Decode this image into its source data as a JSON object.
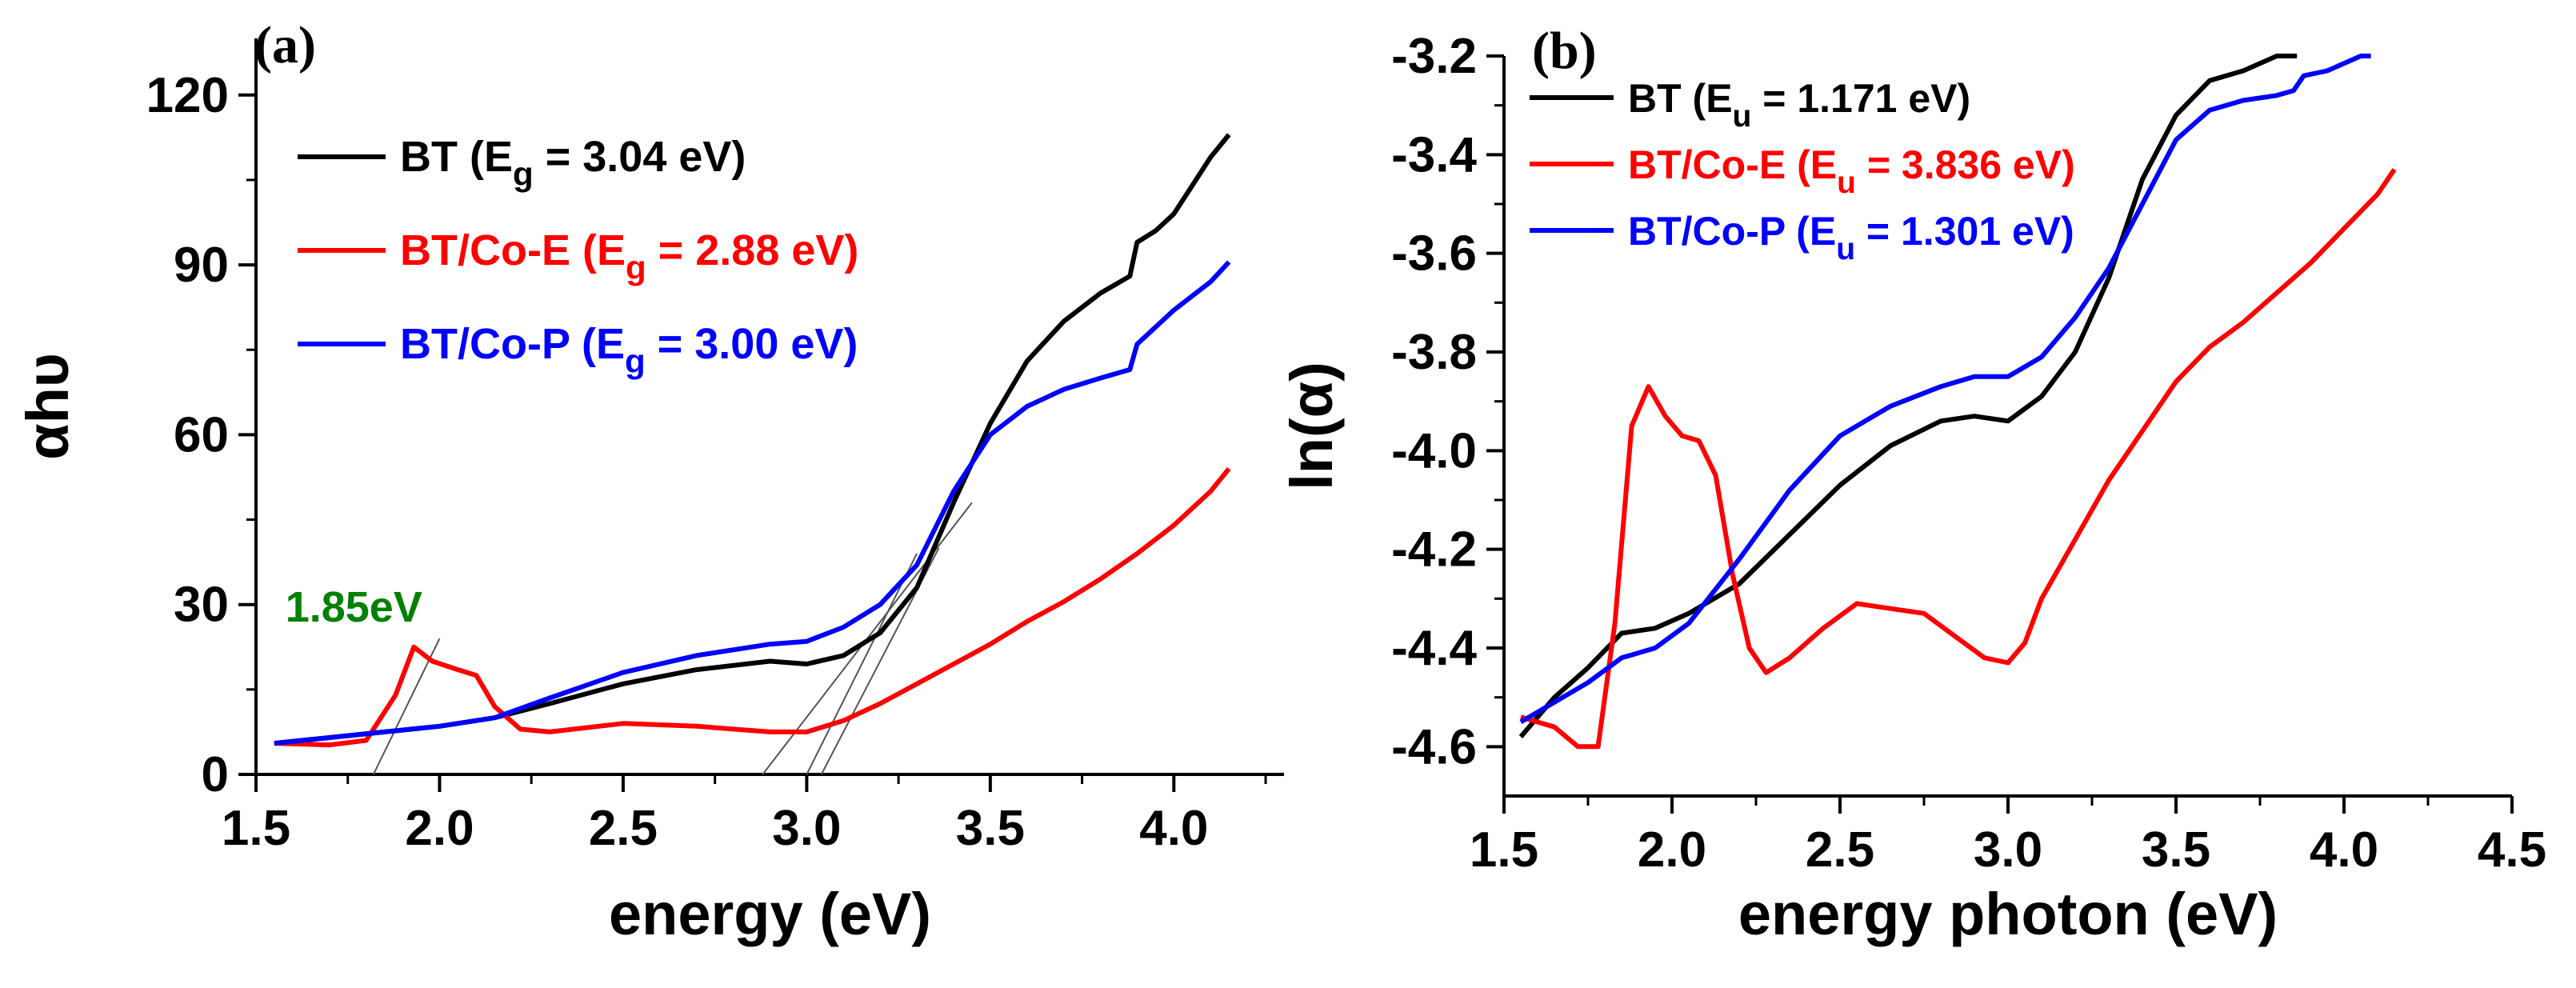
{
  "chart_data": [
    {
      "type": "line",
      "panel_label": "(a)",
      "xlabel": "energy (eV)",
      "ylabel": "αhυ",
      "xlim": [
        1.5,
        4.3
      ],
      "ylim": [
        0,
        130
      ],
      "xticks": [
        1.5,
        2.0,
        2.5,
        3.0,
        3.5,
        4.0
      ],
      "xtick_labels": [
        "1.5",
        "2.0",
        "2.5",
        "3.0",
        "3.5",
        "4.0"
      ],
      "yticks": [
        0,
        30,
        60,
        90,
        120
      ],
      "ytick_labels": [
        "0",
        "30",
        "60",
        "90",
        "120"
      ],
      "annotation": {
        "text": "1.85eV",
        "x": 1.58,
        "y": 27,
        "color": "#008000"
      },
      "legend": [
        {
          "name": "BT",
          "prefix": "BT (E",
          "sub": "g",
          "suffix": " = 3.04 eV)",
          "color": "#000000"
        },
        {
          "name": "BT/Co-E",
          "prefix": "BT/Co-E  (E",
          "sub": "g",
          "suffix": " = 2.88 eV)",
          "color": "#ff0000"
        },
        {
          "name": "BT/Co-P",
          "prefix": "BT/Co-P  (E",
          "sub": "g",
          "suffix": " = 3.00 eV)",
          "color": "#0000ff"
        }
      ],
      "series": [
        {
          "name": "BT",
          "color": "#000000",
          "x": [
            1.55,
            1.7,
            1.85,
            2.0,
            2.15,
            2.3,
            2.5,
            2.7,
            2.9,
            3.0,
            3.1,
            3.2,
            3.3,
            3.4,
            3.5,
            3.6,
            3.7,
            3.8,
            3.88,
            3.9,
            3.95,
            4.0,
            4.05,
            4.1,
            4.15
          ],
          "y": [
            5.5,
            6.5,
            7.5,
            8.5,
            10,
            12.5,
            16,
            18.5,
            20,
            19.5,
            21,
            25,
            33,
            48,
            62,
            73,
            80,
            85,
            88,
            94,
            96,
            99,
            104,
            109,
            113
          ]
        },
        {
          "name": "BT/Co-E",
          "color": "#ff0000",
          "x": [
            1.55,
            1.7,
            1.8,
            1.88,
            1.93,
            1.98,
            2.05,
            2.1,
            2.15,
            2.22,
            2.3,
            2.5,
            2.7,
            2.9,
            3.0,
            3.1,
            3.2,
            3.3,
            3.4,
            3.5,
            3.6,
            3.7,
            3.8,
            3.9,
            4.0,
            4.1,
            4.15
          ],
          "y": [
            5.5,
            5.2,
            6,
            14,
            22.5,
            20,
            18.5,
            17.5,
            12,
            8,
            7.5,
            9,
            8.5,
            7.5,
            7.5,
            9.5,
            12.5,
            16,
            19.5,
            23,
            27,
            30.5,
            34.5,
            39,
            44,
            50,
            54
          ]
        },
        {
          "name": "BT/Co-P",
          "color": "#0000ff",
          "x": [
            1.55,
            1.7,
            1.85,
            2.0,
            2.15,
            2.3,
            2.5,
            2.7,
            2.9,
            3.0,
            3.1,
            3.2,
            3.3,
            3.4,
            3.5,
            3.56,
            3.6,
            3.7,
            3.8,
            3.88,
            3.9,
            4.0,
            4.1,
            4.15
          ],
          "y": [
            5.5,
            6.5,
            7.5,
            8.5,
            10,
            13.5,
            18,
            21,
            23,
            23.5,
            26,
            30,
            37,
            50,
            60,
            63,
            65,
            68,
            70,
            71.5,
            76,
            82,
            87,
            90.5
          ]
        }
      ],
      "tangent_lines": [
        {
          "x": [
            1.82,
            2.0
          ],
          "y": [
            0,
            24
          ]
        },
        {
          "x": [
            2.88,
            3.45
          ],
          "y": [
            0,
            48
          ]
        },
        {
          "x": [
            3.0,
            3.3
          ],
          "y": [
            0,
            39
          ]
        },
        {
          "x": [
            3.04,
            3.36
          ],
          "y": [
            0,
            40
          ]
        }
      ]
    },
    {
      "type": "line",
      "panel_label": "(b)",
      "xlabel": "energy photon (eV)",
      "ylabel": "ln(α)",
      "xlim": [
        1.5,
        4.5
      ],
      "ylim": [
        -4.7,
        -3.2
      ],
      "xticks": [
        1.5,
        2.0,
        2.5,
        3.0,
        3.5,
        4.0,
        4.5
      ],
      "xtick_labels": [
        "1.5",
        "2.0",
        "2.5",
        "3.0",
        "3.5",
        "4.0",
        "4.5"
      ],
      "yticks": [
        -4.6,
        -4.4,
        -4.2,
        -4.0,
        -3.8,
        -3.6,
        -3.4,
        -3.2
      ],
      "ytick_labels": [
        "-4.6",
        "-4.4",
        "-4.2",
        "-4.0",
        "-3.8",
        "-3.6",
        "-3.4",
        "-3.2"
      ],
      "legend": [
        {
          "name": "BT",
          "prefix": "BT (E",
          "sub": "u",
          "suffix": " = 1.171 eV)",
          "color": "#000000"
        },
        {
          "name": "BT/Co-E",
          "prefix": "BT/Co-E (E",
          "sub": "u",
          "suffix": " = 3.836 eV)",
          "color": "#ff0000"
        },
        {
          "name": "BT/Co-P",
          "prefix": "BT/Co-P (E",
          "sub": "u",
          "suffix": " = 1.301 eV)",
          "color": "#0000ff"
        }
      ],
      "series": [
        {
          "name": "BT",
          "color": "#000000",
          "x": [
            1.55,
            1.65,
            1.75,
            1.85,
            1.95,
            2.05,
            2.2,
            2.35,
            2.5,
            2.65,
            2.8,
            2.9,
            3.0,
            3.1,
            3.2,
            3.3,
            3.4,
            3.5,
            3.6,
            3.7,
            3.8,
            3.86
          ],
          "y": [
            -4.58,
            -4.5,
            -4.44,
            -4.37,
            -4.36,
            -4.33,
            -4.27,
            -4.17,
            -4.07,
            -3.99,
            -3.94,
            -3.93,
            -3.94,
            -3.89,
            -3.8,
            -3.65,
            -3.45,
            -3.32,
            -3.25,
            -3.23,
            -3.2,
            -3.2
          ]
        },
        {
          "name": "BT/Co-E",
          "color": "#ff0000",
          "x": [
            1.55,
            1.65,
            1.72,
            1.78,
            1.83,
            1.88,
            1.93,
            1.98,
            2.03,
            2.08,
            2.13,
            2.18,
            2.23,
            2.28,
            2.35,
            2.45,
            2.55,
            2.65,
            2.75,
            2.85,
            2.93,
            3.0,
            3.05,
            3.1,
            3.2,
            3.3,
            3.4,
            3.5,
            3.6,
            3.7,
            3.8,
            3.9,
            4.0,
            4.1,
            4.15
          ],
          "y": [
            -4.54,
            -4.56,
            -4.6,
            -4.6,
            -4.35,
            -3.95,
            -3.87,
            -3.93,
            -3.97,
            -3.98,
            -4.05,
            -4.25,
            -4.4,
            -4.45,
            -4.42,
            -4.36,
            -4.31,
            -4.32,
            -4.33,
            -4.38,
            -4.42,
            -4.43,
            -4.39,
            -4.3,
            -4.18,
            -4.06,
            -3.96,
            -3.86,
            -3.79,
            -3.74,
            -3.68,
            -3.62,
            -3.55,
            -3.48,
            -3.43
          ]
        },
        {
          "name": "BT/Co-P",
          "color": "#0000ff",
          "x": [
            1.55,
            1.65,
            1.75,
            1.85,
            1.95,
            2.05,
            2.2,
            2.35,
            2.5,
            2.65,
            2.8,
            2.9,
            3.0,
            3.1,
            3.2,
            3.3,
            3.4,
            3.5,
            3.55,
            3.6,
            3.7,
            3.8,
            3.85,
            3.88,
            3.95,
            4.05,
            4.08
          ],
          "y": [
            -4.55,
            -4.51,
            -4.47,
            -4.42,
            -4.4,
            -4.35,
            -4.22,
            -4.08,
            -3.97,
            -3.91,
            -3.87,
            -3.85,
            -3.85,
            -3.81,
            -3.73,
            -3.63,
            -3.5,
            -3.37,
            -3.34,
            -3.31,
            -3.29,
            -3.28,
            -3.27,
            -3.24,
            -3.23,
            -3.2,
            -3.2
          ]
        }
      ]
    }
  ]
}
